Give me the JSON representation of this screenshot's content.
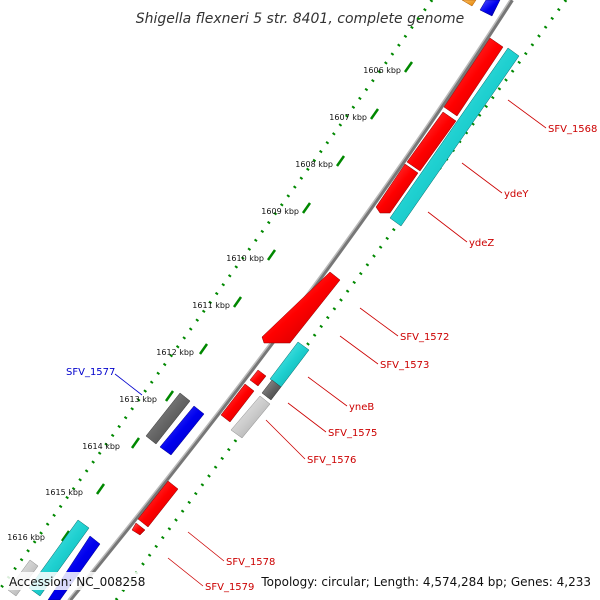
{
  "title": "Shigella flexneri 5 str. 8401, complete genome",
  "footer": {
    "accession": "Accession: NC_008258",
    "summary": "Topology: circular; Length: 4,574,284 bp; Genes: 4,233"
  },
  "ticks": [
    "1606 kbp",
    "1607 kbp",
    "1608 kbp",
    "1609 kbp",
    "1610 kbp",
    "1611 kbp",
    "1612 kbp",
    "1613 kbp",
    "1614 kbp",
    "1615 kbp",
    "1616 kbp"
  ],
  "gene_labels": [
    "SFV_1568",
    "ydeY",
    "ydeZ",
    "SFV_1572",
    "SFV_1573",
    "yneB",
    "SFV_1575",
    "SFV_1576",
    "SFV_1577",
    "SFV_1578",
    "SFV_1579"
  ],
  "colors": {
    "forward": "#ff0000",
    "reverse": "#00cccc",
    "other": "#0000ee",
    "grey": "#666666",
    "light_grey": "#cccccc",
    "orange": "#ff9900",
    "backbone": "#888888",
    "tick_green": "#008800",
    "label_red": "#cc0000",
    "label_blue": "#0000cc"
  }
}
